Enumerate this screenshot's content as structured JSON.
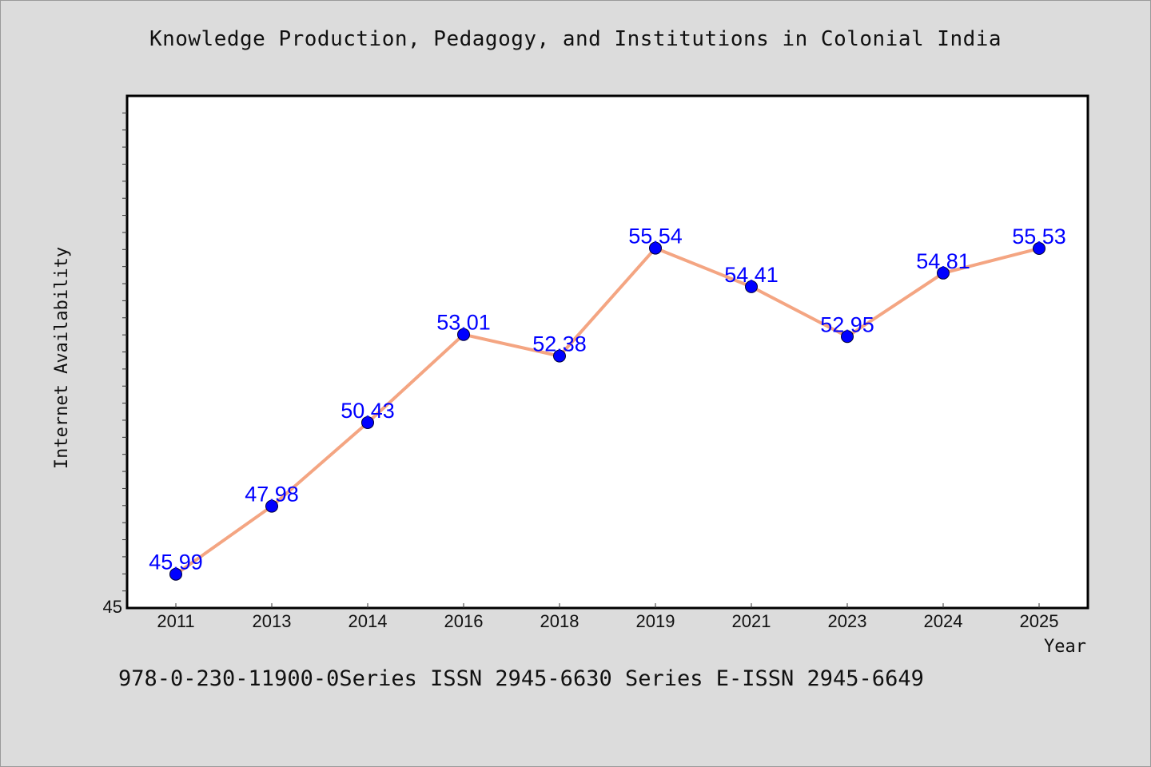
{
  "colors": {
    "background": "#dcdcdc",
    "plot_background": "#ffffff",
    "line": "#f4a582",
    "marker": "#0000ff",
    "label": "#0000ff"
  },
  "chart_data": {
    "type": "line",
    "title": "Knowledge Production, Pedagogy, and Institutions in Colonial India",
    "xlabel": "Year",
    "ylabel": "Internet Availability",
    "categories": [
      "2011",
      "2013",
      "2014",
      "2016",
      "2018",
      "2019",
      "2021",
      "2023",
      "2024",
      "2025"
    ],
    "series": [
      {
        "values": [
          45.99,
          47.98,
          50.43,
          53.01,
          52.38,
          55.54,
          54.41,
          52.95,
          54.81,
          55.53
        ],
        "labels": [
          "45.99",
          "47.98",
          "50.43",
          "53.01",
          "52.38",
          "55.54",
          "54.41",
          "52.95",
          "54.81",
          "55.53"
        ]
      }
    ],
    "ylim": [
      45,
      60
    ],
    "y_tick_labels": [
      "45"
    ],
    "grid": false,
    "legend": "none"
  },
  "footer": {
    "text": "978-0-230-11900-0Series ISSN 2945-6630 Series E-ISSN 2945-6649"
  }
}
